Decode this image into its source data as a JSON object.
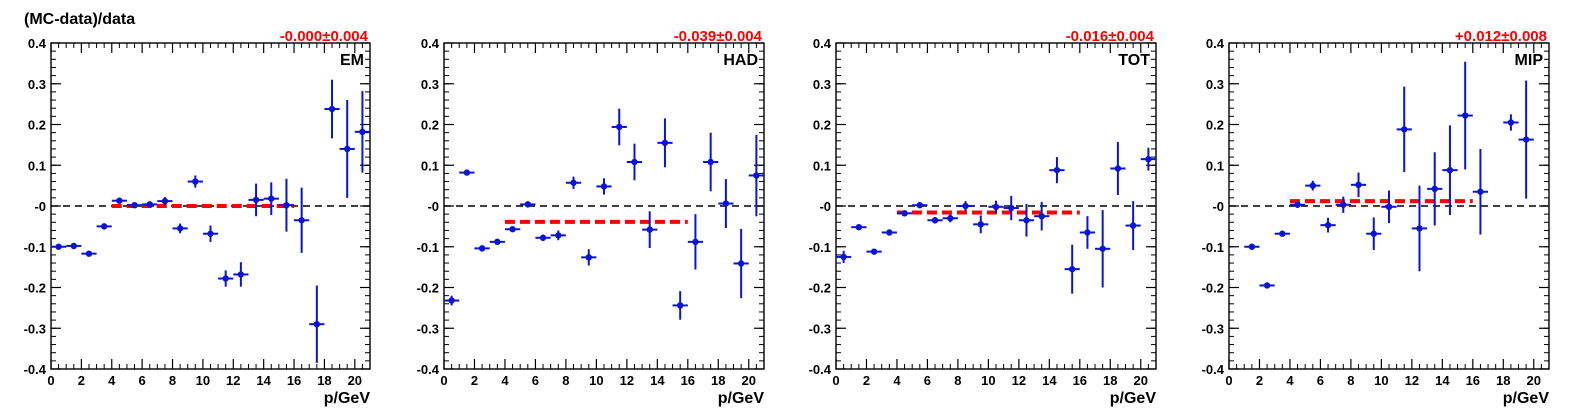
{
  "figure": {
    "ylabel": "(MC-data)/data",
    "xlabel": "p/GeV",
    "colors": {
      "points": "#0a14d6",
      "fit": "#ff0000",
      "reference": "#000000",
      "fit_label": "#ff0000"
    }
  },
  "chart_data": [
    {
      "type": "scatter",
      "label": "EM",
      "fit_label": "-0.000±0.004",
      "fit": {
        "value": -0.0,
        "x_range": [
          4,
          16
        ]
      },
      "reference_line": 0,
      "xlabel": "p/GeV",
      "ylabel": "(MC-data)/data",
      "xlim": [
        0,
        21
      ],
      "ylim": [
        -0.4,
        0.4
      ],
      "x_ticks": [
        0,
        2,
        4,
        6,
        8,
        10,
        12,
        14,
        16,
        18,
        20
      ],
      "y_ticks": [
        -0.4,
        -0.3,
        -0.2,
        -0.1,
        0,
        0.1,
        0.2,
        0.3,
        0.4
      ],
      "y_tick_labels": [
        "-0.4",
        "-0.3",
        "-0.2",
        "-0.1",
        "-0",
        "0.1",
        "0.2",
        "0.3",
        "0.4"
      ],
      "points": [
        {
          "x": 0.5,
          "y": -0.1,
          "yerr": 0.005,
          "xerr": 0.5
        },
        {
          "x": 1.5,
          "y": -0.098,
          "yerr": 0.005,
          "xerr": 0.5
        },
        {
          "x": 2.5,
          "y": -0.117,
          "yerr": 0.005,
          "xerr": 0.5
        },
        {
          "x": 3.5,
          "y": -0.05,
          "yerr": 0.005,
          "xerr": 0.5
        },
        {
          "x": 4.5,
          "y": 0.013,
          "yerr": 0.005,
          "xerr": 0.5
        },
        {
          "x": 5.5,
          "y": 0.002,
          "yerr": 0.005,
          "xerr": 0.5
        },
        {
          "x": 6.5,
          "y": 0.004,
          "yerr": 0.006,
          "xerr": 0.5
        },
        {
          "x": 7.5,
          "y": 0.012,
          "yerr": 0.01,
          "xerr": 0.5
        },
        {
          "x": 8.5,
          "y": -0.055,
          "yerr": 0.012,
          "xerr": 0.5
        },
        {
          "x": 9.5,
          "y": 0.06,
          "yerr": 0.015,
          "xerr": 0.5
        },
        {
          "x": 10.5,
          "y": -0.068,
          "yerr": 0.02,
          "xerr": 0.5
        },
        {
          "x": 11.5,
          "y": -0.178,
          "yerr": 0.02,
          "xerr": 0.5
        },
        {
          "x": 12.5,
          "y": -0.168,
          "yerr": 0.03,
          "xerr": 0.5
        },
        {
          "x": 13.5,
          "y": 0.015,
          "yerr": 0.04,
          "xerr": 0.5
        },
        {
          "x": 14.5,
          "y": 0.018,
          "yerr": 0.04,
          "xerr": 0.5
        },
        {
          "x": 15.5,
          "y": 0.002,
          "yerr": 0.065,
          "xerr": 0.5
        },
        {
          "x": 16.5,
          "y": -0.035,
          "yerr": 0.08,
          "xerr": 0.5
        },
        {
          "x": 17.5,
          "y": -0.29,
          "yerr": 0.095,
          "xerr": 0.5
        },
        {
          "x": 18.5,
          "y": 0.238,
          "yerr": 0.072,
          "xerr": 0.5
        },
        {
          "x": 19.5,
          "y": 0.14,
          "yerr": 0.12,
          "xerr": 0.5
        },
        {
          "x": 20.5,
          "y": 0.182,
          "yerr": 0.1,
          "xerr": 0.5
        }
      ]
    },
    {
      "type": "scatter",
      "label": "HAD",
      "fit_label": "-0.039±0.004",
      "fit": {
        "value": -0.039,
        "x_range": [
          4,
          16
        ]
      },
      "reference_line": 0,
      "xlabel": "p/GeV",
      "ylabel": "",
      "xlim": [
        0,
        21
      ],
      "ylim": [
        -0.4,
        0.4
      ],
      "x_ticks": [
        0,
        2,
        4,
        6,
        8,
        10,
        12,
        14,
        16,
        18,
        20
      ],
      "y_ticks": [
        -0.4,
        -0.3,
        -0.2,
        -0.1,
        0,
        0.1,
        0.2,
        0.3,
        0.4
      ],
      "y_tick_labels": [
        "-0.4",
        "-0.3",
        "-0.2",
        "-0.1",
        "-0",
        "0.1",
        "0.2",
        "0.3",
        "0.4"
      ],
      "points": [
        {
          "x": 0.5,
          "y": -0.232,
          "yerr": 0.012,
          "xerr": 0.5
        },
        {
          "x": 1.5,
          "y": 0.082,
          "yerr": 0.005,
          "xerr": 0.5
        },
        {
          "x": 2.5,
          "y": -0.104,
          "yerr": 0.005,
          "xerr": 0.5
        },
        {
          "x": 3.5,
          "y": -0.088,
          "yerr": 0.005,
          "xerr": 0.5
        },
        {
          "x": 4.5,
          "y": -0.057,
          "yerr": 0.005,
          "xerr": 0.5
        },
        {
          "x": 5.5,
          "y": 0.004,
          "yerr": 0.005,
          "xerr": 0.5
        },
        {
          "x": 6.5,
          "y": -0.078,
          "yerr": 0.008,
          "xerr": 0.5
        },
        {
          "x": 7.5,
          "y": -0.072,
          "yerr": 0.012,
          "xerr": 0.5
        },
        {
          "x": 8.5,
          "y": 0.057,
          "yerr": 0.015,
          "xerr": 0.5
        },
        {
          "x": 9.5,
          "y": -0.126,
          "yerr": 0.02,
          "xerr": 0.5
        },
        {
          "x": 10.5,
          "y": 0.048,
          "yerr": 0.02,
          "xerr": 0.5
        },
        {
          "x": 11.5,
          "y": 0.194,
          "yerr": 0.045,
          "xerr": 0.5
        },
        {
          "x": 12.5,
          "y": 0.108,
          "yerr": 0.045,
          "xerr": 0.5
        },
        {
          "x": 13.5,
          "y": -0.058,
          "yerr": 0.045,
          "xerr": 0.5
        },
        {
          "x": 14.5,
          "y": 0.155,
          "yerr": 0.06,
          "xerr": 0.5
        },
        {
          "x": 15.5,
          "y": -0.244,
          "yerr": 0.035,
          "xerr": 0.5
        },
        {
          "x": 16.5,
          "y": -0.088,
          "yerr": 0.068,
          "xerr": 0.5
        },
        {
          "x": 17.5,
          "y": 0.108,
          "yerr": 0.072,
          "xerr": 0.5
        },
        {
          "x": 18.5,
          "y": 0.006,
          "yerr": 0.06,
          "xerr": 0.5
        },
        {
          "x": 19.5,
          "y": -0.141,
          "yerr": 0.085,
          "xerr": 0.5
        },
        {
          "x": 20.5,
          "y": 0.075,
          "yerr": 0.1,
          "xerr": 0.5
        }
      ]
    },
    {
      "type": "scatter",
      "label": "TOT",
      "fit_label": "-0.016±0.004",
      "fit": {
        "value": -0.016,
        "x_range": [
          4,
          16
        ]
      },
      "reference_line": 0,
      "xlabel": "p/GeV",
      "ylabel": "",
      "xlim": [
        0,
        21
      ],
      "ylim": [
        -0.4,
        0.4
      ],
      "x_ticks": [
        0,
        2,
        4,
        6,
        8,
        10,
        12,
        14,
        16,
        18,
        20
      ],
      "y_ticks": [
        -0.4,
        -0.3,
        -0.2,
        -0.1,
        0,
        0.1,
        0.2,
        0.3,
        0.4
      ],
      "y_tick_labels": [
        "-0.4",
        "-0.3",
        "-0.2",
        "-0.1",
        "-0",
        "0.1",
        "0.2",
        "0.3",
        "0.4"
      ],
      "points": [
        {
          "x": 0.5,
          "y": -0.125,
          "yerr": 0.015,
          "xerr": 0.5
        },
        {
          "x": 1.5,
          "y": -0.052,
          "yerr": 0.006,
          "xerr": 0.5
        },
        {
          "x": 2.5,
          "y": -0.112,
          "yerr": 0.005,
          "xerr": 0.5
        },
        {
          "x": 3.5,
          "y": -0.065,
          "yerr": 0.005,
          "xerr": 0.5
        },
        {
          "x": 4.5,
          "y": -0.018,
          "yerr": 0.005,
          "xerr": 0.5
        },
        {
          "x": 5.5,
          "y": 0.002,
          "yerr": 0.005,
          "xerr": 0.5
        },
        {
          "x": 6.5,
          "y": -0.035,
          "yerr": 0.008,
          "xerr": 0.5
        },
        {
          "x": 7.5,
          "y": -0.03,
          "yerr": 0.01,
          "xerr": 0.5
        },
        {
          "x": 8.5,
          "y": 0.0,
          "yerr": 0.012,
          "xerr": 0.5
        },
        {
          "x": 9.5,
          "y": -0.045,
          "yerr": 0.022,
          "xerr": 0.5
        },
        {
          "x": 10.5,
          "y": -0.002,
          "yerr": 0.015,
          "xerr": 0.5
        },
        {
          "x": 11.5,
          "y": -0.005,
          "yerr": 0.03,
          "xerr": 0.5
        },
        {
          "x": 12.5,
          "y": -0.035,
          "yerr": 0.04,
          "xerr": 0.5
        },
        {
          "x": 13.5,
          "y": -0.025,
          "yerr": 0.035,
          "xerr": 0.5
        },
        {
          "x": 14.5,
          "y": 0.088,
          "yerr": 0.032,
          "xerr": 0.5
        },
        {
          "x": 15.5,
          "y": -0.155,
          "yerr": 0.06,
          "xerr": 0.5
        },
        {
          "x": 16.5,
          "y": -0.065,
          "yerr": 0.04,
          "xerr": 0.5
        },
        {
          "x": 17.5,
          "y": -0.105,
          "yerr": 0.095,
          "xerr": 0.5
        },
        {
          "x": 18.5,
          "y": 0.092,
          "yerr": 0.065,
          "xerr": 0.5
        },
        {
          "x": 19.5,
          "y": -0.048,
          "yerr": 0.06,
          "xerr": 0.5
        },
        {
          "x": 20.5,
          "y": 0.115,
          "yerr": 0.028,
          "xerr": 0.5
        }
      ]
    },
    {
      "type": "scatter",
      "label": "MIP",
      "fit_label": "+0.012±0.008",
      "fit": {
        "value": 0.012,
        "x_range": [
          4,
          16
        ]
      },
      "reference_line": 0,
      "xlabel": "p/GeV",
      "ylabel": "",
      "xlim": [
        0,
        21
      ],
      "ylim": [
        -0.4,
        0.4
      ],
      "x_ticks": [
        0,
        2,
        4,
        6,
        8,
        10,
        12,
        14,
        16,
        18,
        20
      ],
      "y_ticks": [
        -0.4,
        -0.3,
        -0.2,
        -0.1,
        0,
        0.1,
        0.2,
        0.3,
        0.4
      ],
      "y_tick_labels": [
        "-0.4",
        "-0.3",
        "-0.2",
        "-0.1",
        "-0",
        "0.1",
        "0.2",
        "0.3",
        "0.4"
      ],
      "points": [
        {
          "x": 1.5,
          "y": -0.1,
          "yerr": 0.005,
          "xerr": 0.5
        },
        {
          "x": 2.5,
          "y": -0.195,
          "yerr": 0.005,
          "xerr": 0.5
        },
        {
          "x": 3.5,
          "y": -0.068,
          "yerr": 0.005,
          "xerr": 0.5
        },
        {
          "x": 4.5,
          "y": 0.003,
          "yerr": 0.006,
          "xerr": 0.5
        },
        {
          "x": 5.5,
          "y": 0.05,
          "yerr": 0.012,
          "xerr": 0.5
        },
        {
          "x": 6.5,
          "y": -0.047,
          "yerr": 0.018,
          "xerr": 0.5
        },
        {
          "x": 7.5,
          "y": 0.003,
          "yerr": 0.02,
          "xerr": 0.5
        },
        {
          "x": 8.5,
          "y": 0.052,
          "yerr": 0.03,
          "xerr": 0.5
        },
        {
          "x": 9.5,
          "y": -0.068,
          "yerr": 0.04,
          "xerr": 0.5
        },
        {
          "x": 10.5,
          "y": -0.002,
          "yerr": 0.04,
          "xerr": 0.5
        },
        {
          "x": 11.5,
          "y": 0.188,
          "yerr": 0.105,
          "xerr": 0.5
        },
        {
          "x": 12.5,
          "y": -0.055,
          "yerr": 0.105,
          "xerr": 0.5
        },
        {
          "x": 13.5,
          "y": 0.042,
          "yerr": 0.09,
          "xerr": 0.5
        },
        {
          "x": 14.5,
          "y": 0.088,
          "yerr": 0.11,
          "xerr": 0.5
        },
        {
          "x": 15.5,
          "y": 0.222,
          "yerr": 0.132,
          "xerr": 0.5
        },
        {
          "x": 16.5,
          "y": 0.035,
          "yerr": 0.105,
          "xerr": 0.5
        },
        {
          "x": 18.5,
          "y": 0.205,
          "yerr": 0.02,
          "xerr": 0.5
        },
        {
          "x": 19.5,
          "y": 0.163,
          "yerr": 0.145,
          "xerr": 0.5
        }
      ]
    }
  ]
}
